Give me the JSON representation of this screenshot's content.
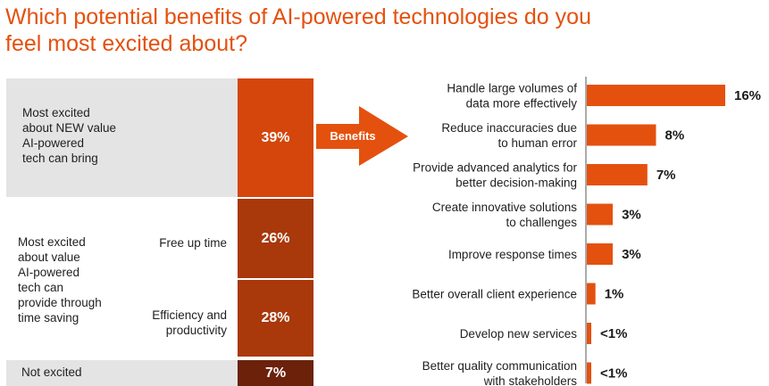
{
  "title": {
    "line1": "Which potential benefits of AI-powered technologies do you",
    "line2": "feel most excited about?"
  },
  "colors": {
    "accent": "#e4510f",
    "block_new": "#d4460b",
    "block_time": "#a9380b",
    "block_not": "#6b210a",
    "grey": "#e4e4e4"
  },
  "left_panel": {
    "new_value": {
      "label": [
        "Most excited",
        "about NEW value",
        "AI-powered",
        "tech can bring"
      ],
      "percent": "39%"
    },
    "time_saving": {
      "label": [
        "Most excited",
        "about value",
        "AI-powered",
        "tech can",
        "provide through",
        "time saving"
      ],
      "sub": [
        {
          "label": [
            "Free up time"
          ],
          "percent": "26%"
        },
        {
          "label": [
            "Efficiency and",
            "productivity"
          ],
          "percent": "28%"
        }
      ]
    },
    "not_excited": {
      "label": "Not excited",
      "percent": "7%"
    }
  },
  "arrow_label": "Benefits",
  "chart_data": {
    "type": "bar",
    "orientation": "horizontal",
    "categories": [
      [
        "Handle large volumes of",
        "data more effectively"
      ],
      [
        "Reduce inaccuracies due",
        "to human error"
      ],
      [
        "Provide advanced analytics for",
        "better decision-making"
      ],
      [
        "Create innovative solutions",
        "to challenges"
      ],
      [
        "Improve response times"
      ],
      [
        "Better overall client experience"
      ],
      [
        "Develop new services"
      ],
      [
        "Better quality communication",
        "with stakeholders"
      ]
    ],
    "values": [
      16,
      8,
      7,
      3,
      3,
      1,
      0.5,
      0.5
    ],
    "value_labels": [
      "16%",
      "8%",
      "7%",
      "3%",
      "3%",
      "1%",
      "<1%",
      "<1%"
    ],
    "xlim": [
      0,
      16
    ],
    "color": "#e4510f"
  }
}
